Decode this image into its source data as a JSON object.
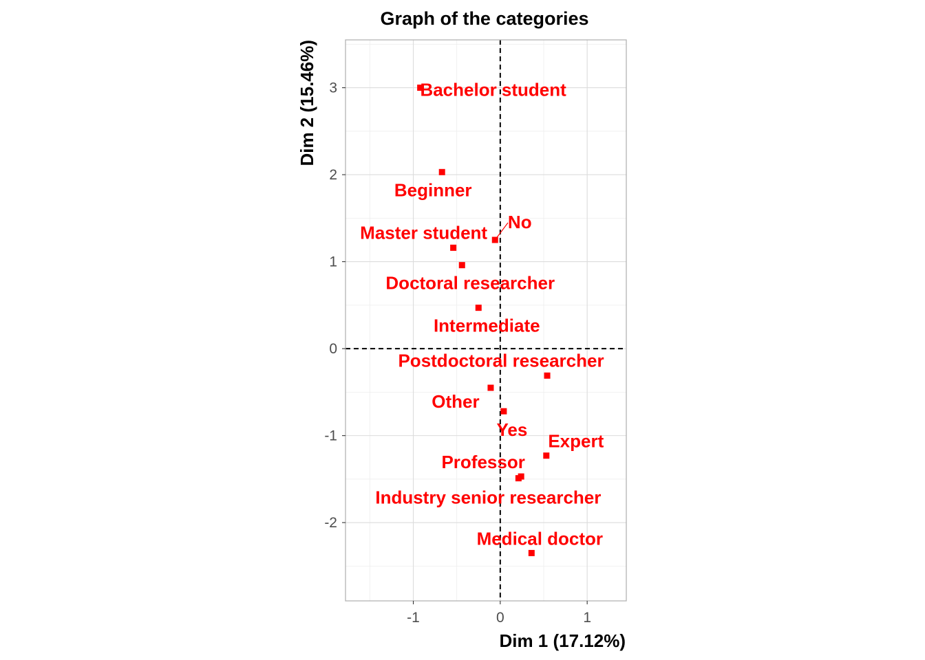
{
  "chart_data": {
    "type": "scatter",
    "title": "Graph of the categories",
    "xlabel": "Dim 1 (17.12%)",
    "ylabel": "Dim 2 (15.46%)",
    "xlim": [
      -1.78,
      1.45
    ],
    "ylim": [
      -2.9,
      3.55
    ],
    "xticks": [
      -1,
      0,
      1
    ],
    "yticks": [
      -2,
      -1,
      0,
      1,
      2,
      3
    ],
    "grid": true,
    "reference_lines": {
      "x": 0,
      "y": 0,
      "style": "dashed"
    },
    "point_color": "#ff0000",
    "points": [
      {
        "label": "Bachelor student",
        "x": -0.92,
        "y": 3.0
      },
      {
        "label": "Beginner",
        "x": -0.67,
        "y": 2.03
      },
      {
        "label": "No",
        "x": -0.06,
        "y": 1.25
      },
      {
        "label": "Master student",
        "x": -0.54,
        "y": 1.16
      },
      {
        "label": "Doctoral researcher",
        "x": -0.44,
        "y": 0.96
      },
      {
        "label": "Intermediate",
        "x": -0.25,
        "y": 0.47
      },
      {
        "label": "Postdoctoral researcher",
        "x": 0.54,
        "y": -0.31
      },
      {
        "label": "Other",
        "x": -0.11,
        "y": -0.45
      },
      {
        "label": "Yes",
        "x": 0.04,
        "y": -0.72
      },
      {
        "label": "Expert",
        "x": 0.53,
        "y": -1.23
      },
      {
        "label": "Professor",
        "x": 0.24,
        "y": -1.47
      },
      {
        "label": "Industry senior researcher",
        "x": 0.21,
        "y": -1.49
      },
      {
        "label": "Medical doctor",
        "x": 0.36,
        "y": -2.35
      }
    ]
  }
}
